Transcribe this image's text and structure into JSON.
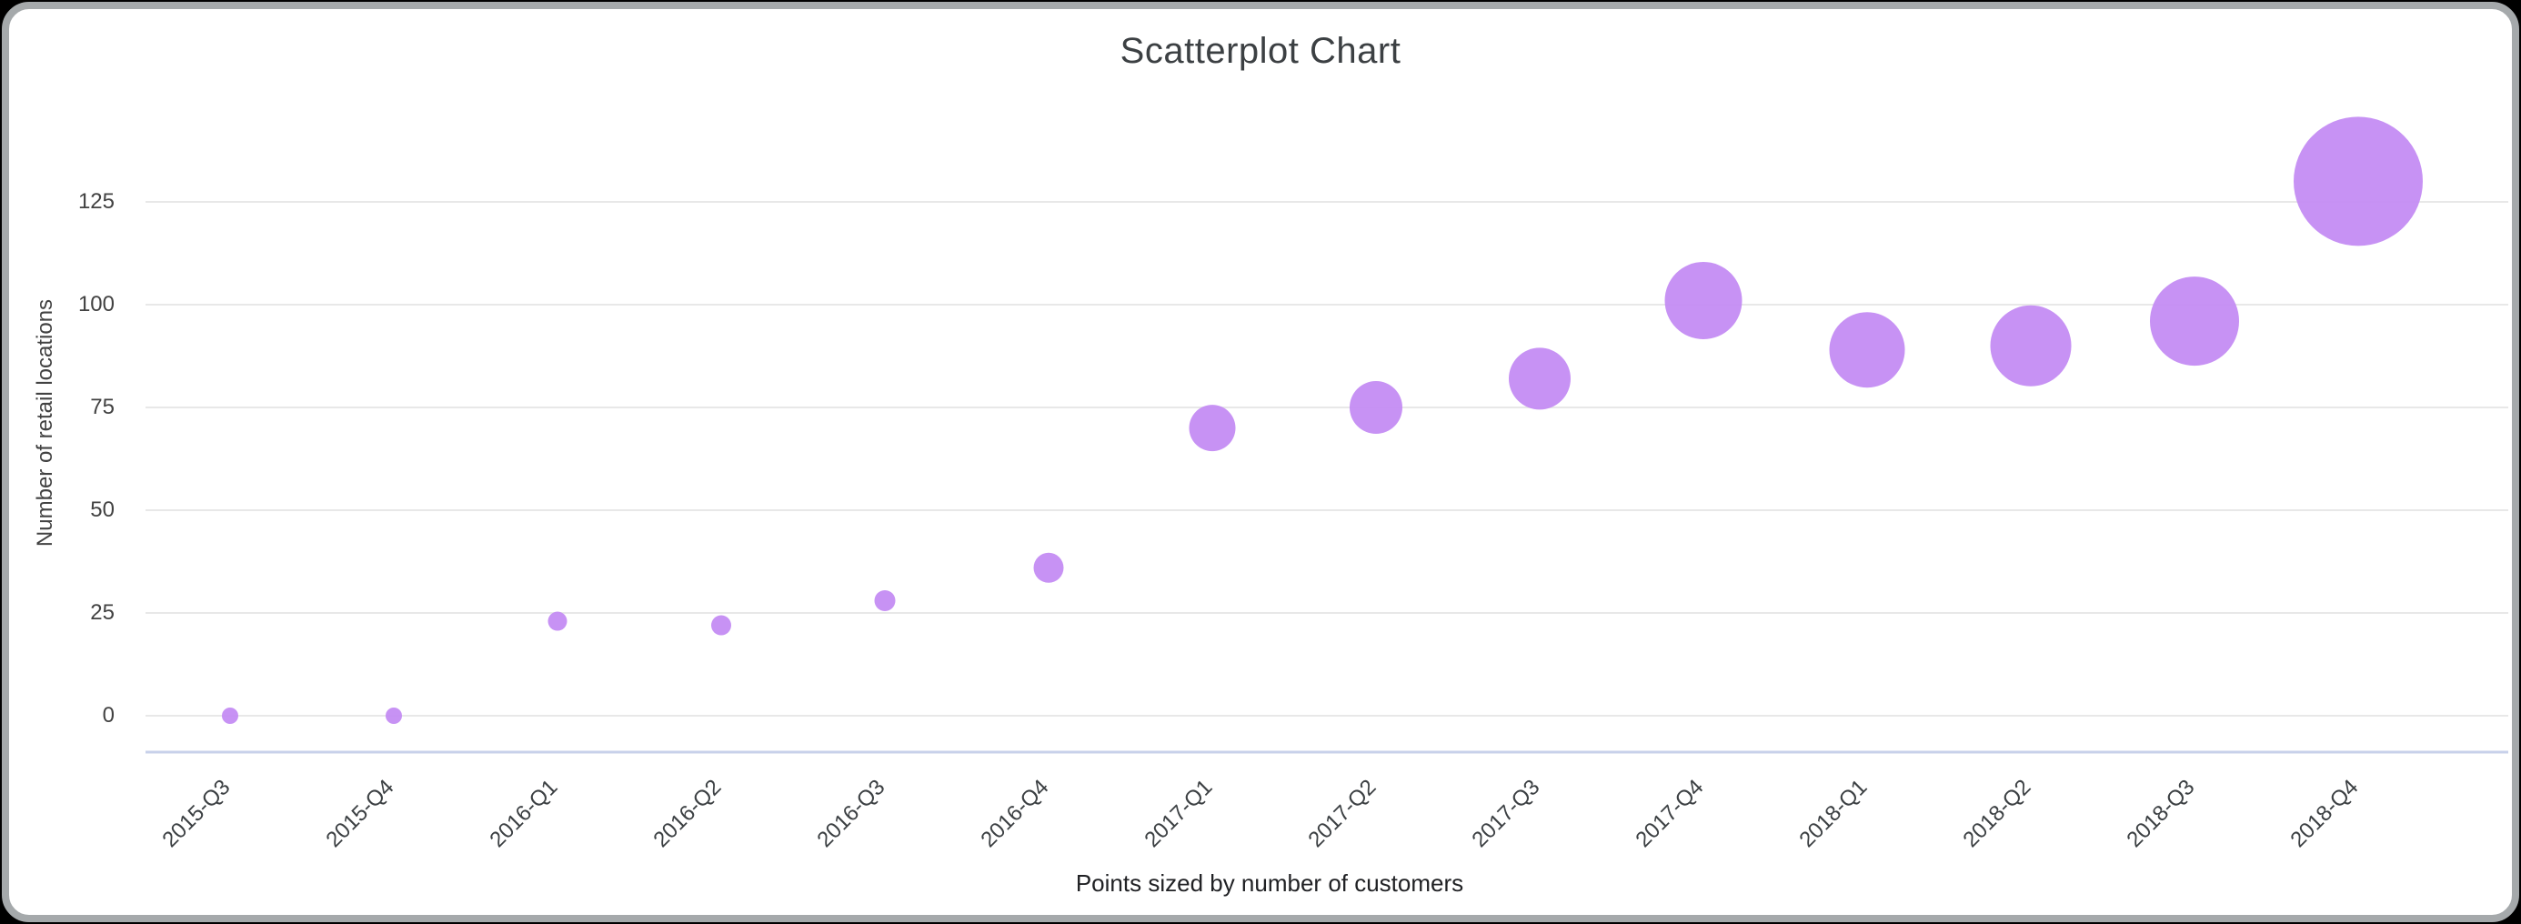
{
  "page": {
    "background": "#000000"
  },
  "card": {
    "background": "#ffffff",
    "border_color": "#a5a9ab"
  },
  "chart_data": {
    "type": "scatter",
    "title": "Scatterplot Chart",
    "ylabel": "Number of retail locations",
    "xlabel": "Points sized by number of customers",
    "legend_position": "none",
    "grid": true,
    "y_ticks": [
      0,
      25,
      50,
      75,
      100,
      125
    ],
    "ylim": [
      0,
      150
    ],
    "point_color": "#c289f3",
    "size_encoding": "number of customers",
    "categories": [
      "2015-Q3",
      "2015-Q4",
      "2016-Q1",
      "2016-Q2",
      "2016-Q3",
      "2016-Q4",
      "2017-Q1",
      "2017-Q2",
      "2017-Q3",
      "2017-Q4",
      "2018-Q1",
      "2018-Q2",
      "2018-Q3",
      "2018-Q4"
    ],
    "series": [
      {
        "name": "Number of retail locations",
        "values": [
          0,
          0,
          23,
          22,
          28,
          36,
          70,
          75,
          82,
          101,
          89,
          90,
          96,
          130
        ],
        "point_radius_px": [
          9,
          9,
          10.5,
          11,
          11.5,
          16.5,
          25.5,
          29,
          34,
          42.5,
          41.5,
          44.5,
          49,
          71
        ]
      }
    ]
  },
  "colors": {
    "grid": "#e8e8e8",
    "baseline": "#c8d1ea",
    "tick_text": "#424242",
    "title_text": "#3c4043",
    "caption_text": "#202124"
  }
}
